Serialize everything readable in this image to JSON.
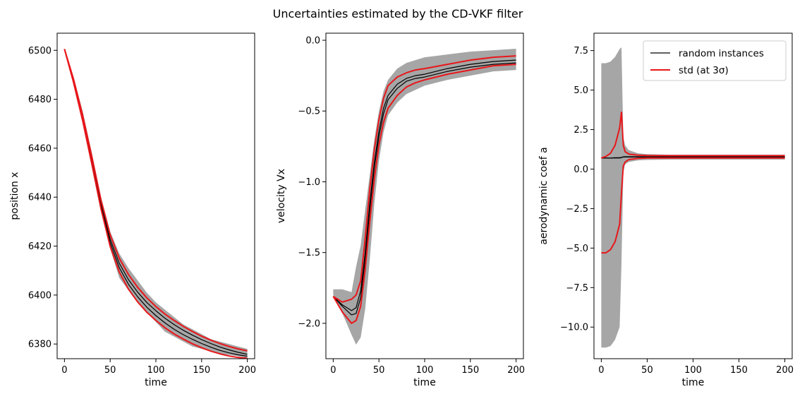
{
  "figure": {
    "title": "Uncertainties estimated by the CD-VKF filter"
  },
  "colors": {
    "band": "#a6a6a6",
    "instance": "#000000",
    "std": "#e8161a",
    "axis": "#000000"
  },
  "chart_data": [
    {
      "type": "line",
      "xlabel": "time",
      "ylabel": "position x",
      "xlim": [
        -8,
        208
      ],
      "ylim": [
        6374,
        6507
      ],
      "xticks": [
        0,
        50,
        100,
        150,
        200
      ],
      "yticks": [
        6380,
        6400,
        6420,
        6440,
        6460,
        6480,
        6500
      ],
      "x": [
        0,
        10,
        20,
        30,
        40,
        50,
        60,
        70,
        80,
        90,
        100,
        110,
        120,
        130,
        140,
        150,
        160,
        170,
        180,
        190,
        200
      ],
      "band": {
        "upper": [
          6500.5,
          6489,
          6475,
          6458,
          6440,
          6426,
          6417,
          6411,
          6406,
          6401,
          6397,
          6394,
          6391,
          6388,
          6386,
          6384,
          6382,
          6381,
          6380,
          6379,
          6378
        ],
        "lower": [
          6500.5,
          6486,
          6470,
          6452,
          6434,
          6419,
          6407,
          6402,
          6397,
          6393,
          6389,
          6385,
          6383,
          6381,
          6379,
          6378,
          6377,
          6376,
          6375.5,
          6375,
          6374.5
        ]
      },
      "series": [
        {
          "role": "instance",
          "values": [
            6500.5,
            6487.6,
            6472.4,
            6455.1,
            6437.2,
            6422.8,
            6413.0,
            6406.3,
            6401.2,
            6397.0,
            6393.6,
            6390.5,
            6387.9,
            6385.6,
            6383.6,
            6381.8,
            6380.2,
            6378.8,
            6377.6,
            6376.6,
            6375.8
          ]
        },
        {
          "role": "instance",
          "values": [
            6500.5,
            6487.2,
            6471.8,
            6454.3,
            6436.2,
            6421.4,
            6411.2,
            6404.4,
            6399.3,
            6395.1,
            6391.6,
            6388.6,
            6386.0,
            6383.8,
            6381.9,
            6380.2,
            6378.7,
            6377.4,
            6376.4,
            6375.6,
            6375.0
          ]
        },
        {
          "role": "std",
          "values": [
            6500.5,
            6488.2,
            6473.3,
            6456.4,
            6438.8,
            6424.6,
            6415.0,
            6408.4,
            6403.2,
            6398.9,
            6395.3,
            6392.2,
            6389.6,
            6387.2,
            6385.1,
            6383.2,
            6381.6,
            6380.2,
            6379.0,
            6378.0,
            6377.2
          ]
        },
        {
          "role": "std",
          "values": [
            6500.5,
            6486.8,
            6471.1,
            6453.4,
            6435.2,
            6419.8,
            6409.4,
            6402.4,
            6397.2,
            6393.0,
            6389.6,
            6386.6,
            6384.1,
            6382.0,
            6380.1,
            6378.5,
            6377.1,
            6376.0,
            6375.1,
            6374.5,
            6374.2
          ]
        }
      ]
    },
    {
      "type": "line",
      "xlabel": "time",
      "ylabel": "velocity Vx",
      "xlim": [
        -8,
        208
      ],
      "ylim": [
        -2.25,
        0.05
      ],
      "xticks": [
        0,
        50,
        100,
        150,
        200
      ],
      "yticks": [
        0.0,
        -0.5,
        -1.0,
        -1.5,
        -2.0
      ],
      "ytick_labels": [
        "0.0",
        "−0.5",
        "−1.0",
        "−1.5",
        "−2.0"
      ],
      "x": [
        0,
        10,
        20,
        25,
        30,
        35,
        40,
        45,
        50,
        55,
        60,
        70,
        80,
        90,
        100,
        125,
        150,
        175,
        200
      ],
      "band": {
        "upper": [
          -1.76,
          -1.76,
          -1.78,
          -1.6,
          -1.45,
          -1.2,
          -0.95,
          -0.7,
          -0.5,
          -0.36,
          -0.28,
          -0.2,
          -0.16,
          -0.14,
          -0.12,
          -0.1,
          -0.08,
          -0.07,
          -0.06
        ],
        "lower": [
          -1.8,
          -1.93,
          -2.08,
          -2.15,
          -2.1,
          -1.9,
          -1.55,
          -1.15,
          -0.85,
          -0.65,
          -0.53,
          -0.44,
          -0.38,
          -0.35,
          -0.32,
          -0.28,
          -0.25,
          -0.22,
          -0.21
        ]
      },
      "series": [
        {
          "role": "instance",
          "values": [
            -1.81,
            -1.87,
            -1.91,
            -1.89,
            -1.77,
            -1.5,
            -1.15,
            -0.86,
            -0.64,
            -0.48,
            -0.39,
            -0.31,
            -0.27,
            -0.25,
            -0.24,
            -0.2,
            -0.17,
            -0.15,
            -0.14
          ]
        },
        {
          "role": "instance",
          "values": [
            -1.81,
            -1.88,
            -1.94,
            -1.93,
            -1.82,
            -1.55,
            -1.2,
            -0.9,
            -0.68,
            -0.52,
            -0.42,
            -0.34,
            -0.29,
            -0.27,
            -0.26,
            -0.22,
            -0.19,
            -0.17,
            -0.16
          ]
        },
        {
          "role": "std",
          "values": [
            -1.81,
            -1.85,
            -1.83,
            -1.8,
            -1.7,
            -1.4,
            -1.05,
            -0.77,
            -0.56,
            -0.41,
            -0.32,
            -0.26,
            -0.23,
            -0.21,
            -0.2,
            -0.17,
            -0.14,
            -0.12,
            -0.11
          ]
        },
        {
          "role": "std",
          "values": [
            -1.81,
            -1.92,
            -2.0,
            -1.98,
            -1.88,
            -1.62,
            -1.28,
            -0.98,
            -0.74,
            -0.58,
            -0.48,
            -0.39,
            -0.33,
            -0.3,
            -0.28,
            -0.24,
            -0.21,
            -0.18,
            -0.17
          ]
        }
      ]
    },
    {
      "type": "line",
      "xlabel": "time",
      "ylabel": "aerodynamic coef a",
      "xlim": [
        -8,
        208
      ],
      "ylim": [
        -12.0,
        8.6
      ],
      "xticks": [
        0,
        50,
        100,
        150,
        200
      ],
      "yticks": [
        7.5,
        5.0,
        2.5,
        0.0,
        -2.5,
        -5.0,
        -7.5,
        -10.0
      ],
      "ytick_labels": [
        "7.5",
        "5.0",
        "2.5",
        "0.0",
        "−2.5",
        "−5.0",
        "−7.5",
        "−10.0"
      ],
      "legend": {
        "location": "upper right",
        "entries": [
          "random instances",
          "std (at 3σ)"
        ]
      },
      "x": [
        0,
        5,
        10,
        15,
        20,
        22,
        24,
        26,
        30,
        40,
        50,
        75,
        100,
        150,
        200
      ],
      "band": {
        "upper": [
          6.7,
          6.7,
          6.8,
          7.1,
          7.6,
          7.7,
          2.0,
          1.5,
          1.2,
          1.0,
          0.95,
          0.9,
          0.9,
          0.9,
          0.9
        ],
        "lower": [
          -11.3,
          -11.3,
          -11.2,
          -10.8,
          -10.0,
          -6.0,
          -0.2,
          0.3,
          0.45,
          0.55,
          0.58,
          0.6,
          0.6,
          0.6,
          0.6
        ]
      },
      "series": [
        {
          "role": "instance",
          "values": [
            0.7,
            0.7,
            0.7,
            0.7,
            0.7,
            0.72,
            0.78,
            0.78,
            0.78,
            0.78,
            0.78,
            0.78,
            0.78,
            0.78,
            0.78
          ]
        },
        {
          "role": "instance",
          "values": [
            0.7,
            0.7,
            0.7,
            0.72,
            0.72,
            0.74,
            0.76,
            0.76,
            0.76,
            0.76,
            0.76,
            0.76,
            0.76,
            0.76,
            0.76
          ]
        },
        {
          "role": "std",
          "values": [
            0.7,
            0.8,
            1.0,
            1.5,
            2.6,
            3.6,
            1.5,
            1.1,
            0.95,
            0.88,
            0.86,
            0.85,
            0.85,
            0.85,
            0.85
          ]
        },
        {
          "role": "std",
          "values": [
            -5.3,
            -5.3,
            -5.1,
            -4.6,
            -3.5,
            -1.5,
            0.2,
            0.45,
            0.6,
            0.68,
            0.7,
            0.7,
            0.7,
            0.7,
            0.7
          ]
        }
      ]
    }
  ]
}
